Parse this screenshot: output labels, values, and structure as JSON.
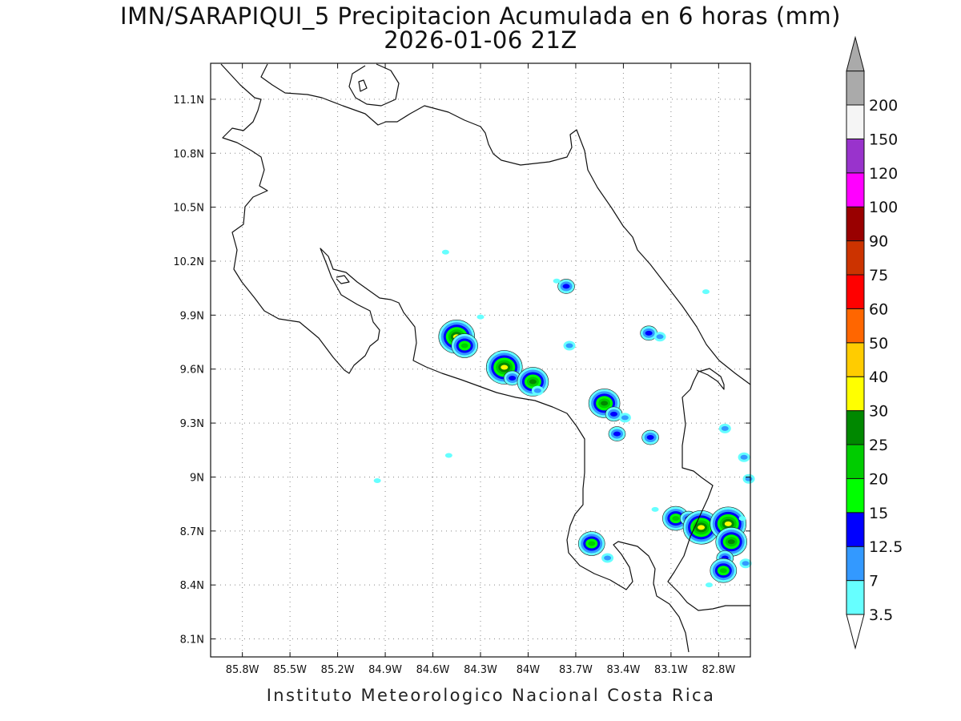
{
  "title": {
    "line1": "IMN/SARAPIQUI_5 Precipitacion Acumulada en 6 horas (mm)",
    "line2": "2026-01-06 21Z"
  },
  "credit": "Instituto Meteorologico Nacional Costa Rica",
  "map": {
    "lon_range": [
      -86.0,
      -82.6
    ],
    "lat_range": [
      8.0,
      11.3
    ],
    "x_ticks": [
      {
        "value": -85.8,
        "label": "85.8W"
      },
      {
        "value": -85.5,
        "label": "85.5W"
      },
      {
        "value": -85.2,
        "label": "85.2W"
      },
      {
        "value": -84.9,
        "label": "84.9W"
      },
      {
        "value": -84.6,
        "label": "84.6W"
      },
      {
        "value": -84.3,
        "label": "84.3W"
      },
      {
        "value": -84.0,
        "label": "84W"
      },
      {
        "value": -83.7,
        "label": "83.7W"
      },
      {
        "value": -83.4,
        "label": "83.4W"
      },
      {
        "value": -83.1,
        "label": "83.1W"
      },
      {
        "value": -82.8,
        "label": "82.8W"
      }
    ],
    "y_ticks": [
      {
        "value": 11.1,
        "label": "11.1N"
      },
      {
        "value": 10.8,
        "label": "10.8N"
      },
      {
        "value": 10.5,
        "label": "10.5N"
      },
      {
        "value": 10.2,
        "label": "10.2N"
      },
      {
        "value": 9.9,
        "label": "9.9N"
      },
      {
        "value": 9.6,
        "label": "9.6N"
      },
      {
        "value": 9.3,
        "label": "9.3N"
      },
      {
        "value": 9.0,
        "label": "9N"
      },
      {
        "value": 8.7,
        "label": "8.7N"
      },
      {
        "value": 8.4,
        "label": "8.4N"
      },
      {
        "value": 8.1,
        "label": "8.1N"
      }
    ],
    "grid": true,
    "precip_cells": [
      {
        "lon": -84.45,
        "lat": 9.78,
        "level": 30
      },
      {
        "lon": -84.4,
        "lat": 9.73,
        "level": 20
      },
      {
        "lon": -84.15,
        "lat": 9.61,
        "level": 30
      },
      {
        "lon": -84.1,
        "lat": 9.55,
        "level": 12.5
      },
      {
        "lon": -83.97,
        "lat": 9.53,
        "level": 25
      },
      {
        "lon": -83.94,
        "lat": 9.48,
        "level": 7
      },
      {
        "lon": -83.76,
        "lat": 10.06,
        "level": 12.5
      },
      {
        "lon": -83.52,
        "lat": 9.41,
        "level": 25
      },
      {
        "lon": -83.46,
        "lat": 9.35,
        "level": 12.5
      },
      {
        "lon": -83.39,
        "lat": 9.33,
        "level": 7
      },
      {
        "lon": -83.44,
        "lat": 9.24,
        "level": 12.5
      },
      {
        "lon": -83.23,
        "lat": 9.22,
        "level": 12.5
      },
      {
        "lon": -83.24,
        "lat": 9.8,
        "level": 12.5
      },
      {
        "lon": -83.17,
        "lat": 9.78,
        "level": 7
      },
      {
        "lon": -83.74,
        "lat": 9.73,
        "level": 7
      },
      {
        "lon": -83.6,
        "lat": 8.63,
        "level": 20
      },
      {
        "lon": -83.5,
        "lat": 8.55,
        "level": 7
      },
      {
        "lon": -83.07,
        "lat": 8.77,
        "level": 20
      },
      {
        "lon": -82.99,
        "lat": 8.77,
        "level": 12.5
      },
      {
        "lon": -82.91,
        "lat": 8.72,
        "level": 30
      },
      {
        "lon": -82.74,
        "lat": 8.74,
        "level": 30
      },
      {
        "lon": -82.72,
        "lat": 8.64,
        "level": 25
      },
      {
        "lon": -82.76,
        "lat": 8.55,
        "level": 12.5
      },
      {
        "lon": -82.77,
        "lat": 8.48,
        "level": 20
      },
      {
        "lon": -82.63,
        "lat": 8.52,
        "level": 7
      },
      {
        "lon": -82.65,
        "lat": 8.77,
        "level": 3.5
      },
      {
        "lon": -82.64,
        "lat": 9.11,
        "level": 7
      },
      {
        "lon": -82.61,
        "lat": 8.99,
        "level": 7
      },
      {
        "lon": -82.76,
        "lat": 9.27,
        "level": 7
      },
      {
        "lon": -84.52,
        "lat": 10.25,
        "level": 3.5
      },
      {
        "lon": -83.82,
        "lat": 10.09,
        "level": 3.5
      },
      {
        "lon": -84.3,
        "lat": 9.89,
        "level": 3.5
      },
      {
        "lon": -84.5,
        "lat": 9.12,
        "level": 3.5
      },
      {
        "lon": -84.95,
        "lat": 8.98,
        "level": 3.5
      },
      {
        "lon": -82.88,
        "lat": 10.03,
        "level": 3.5
      },
      {
        "lon": -83.2,
        "lat": 8.82,
        "level": 3.5
      },
      {
        "lon": -82.86,
        "lat": 8.4,
        "level": 3.5
      }
    ]
  },
  "colorbar": {
    "levels": [
      {
        "label": "3.5",
        "color": "#66ffff"
      },
      {
        "label": "7",
        "color": "#3399ff"
      },
      {
        "label": "12.5",
        "color": "#0000ff"
      },
      {
        "label": "15",
        "color": "#00ff00"
      },
      {
        "label": "20",
        "color": "#00cc00"
      },
      {
        "label": "25",
        "color": "#008800"
      },
      {
        "label": "30",
        "color": "#ffff00"
      },
      {
        "label": "40",
        "color": "#ffcc00"
      },
      {
        "label": "50",
        "color": "#ff6600"
      },
      {
        "label": "60",
        "color": "#ff0000"
      },
      {
        "label": "75",
        "color": "#cc3300"
      },
      {
        "label": "90",
        "color": "#990000"
      },
      {
        "label": "100",
        "color": "#ff00ff"
      },
      {
        "label": "120",
        "color": "#9933cc"
      },
      {
        "label": "150",
        "color": "#f5f5f5"
      },
      {
        "label": "200",
        "color": "#aaaaaa"
      }
    ],
    "under_color": "#ffffff",
    "over_color": "#aaaaaa"
  }
}
